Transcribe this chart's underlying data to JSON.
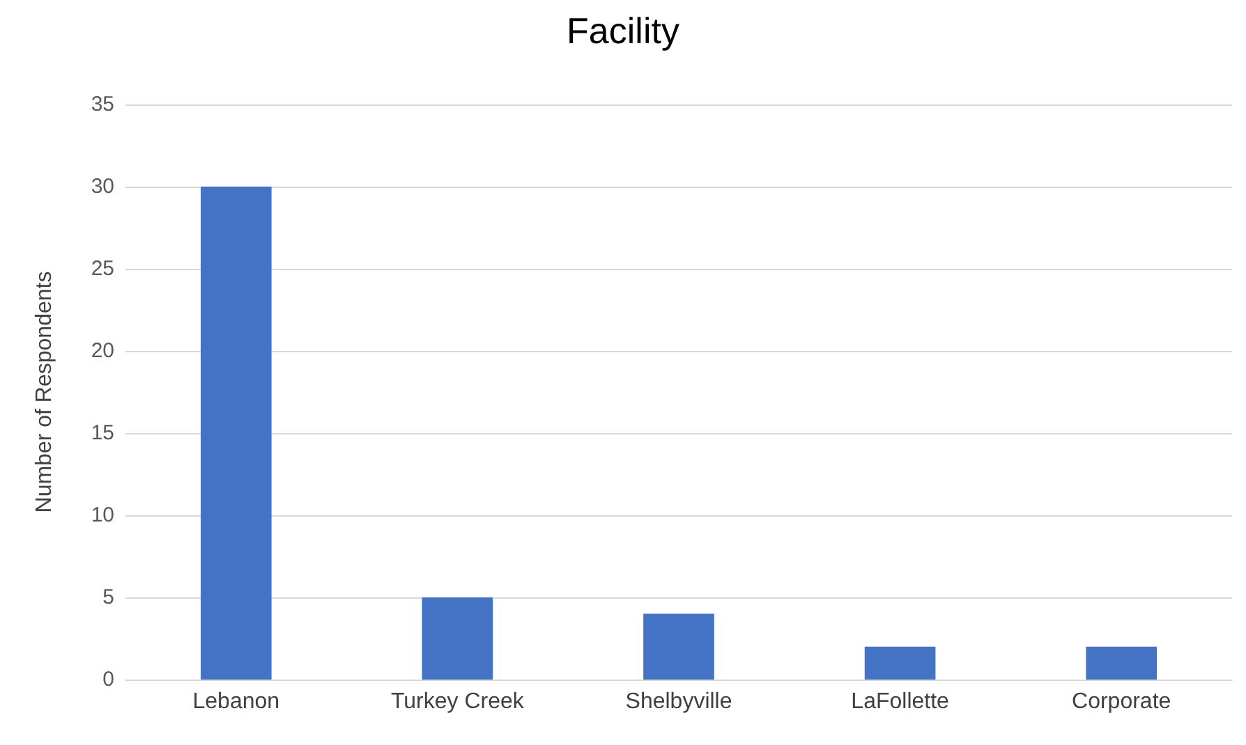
{
  "chart_data": {
    "type": "bar",
    "title": "Facility",
    "ylabel": "Number of Respondents",
    "categories": [
      "Lebanon",
      "Turkey Creek",
      "Shelbyville",
      "LaFollette",
      "Corporate"
    ],
    "values": [
      30,
      5,
      4,
      2,
      2
    ],
    "color": "#4472c4",
    "ylim": [
      0,
      35
    ],
    "yticks": [
      0,
      5,
      10,
      15,
      20,
      25,
      30,
      35
    ],
    "grid": "y"
  }
}
